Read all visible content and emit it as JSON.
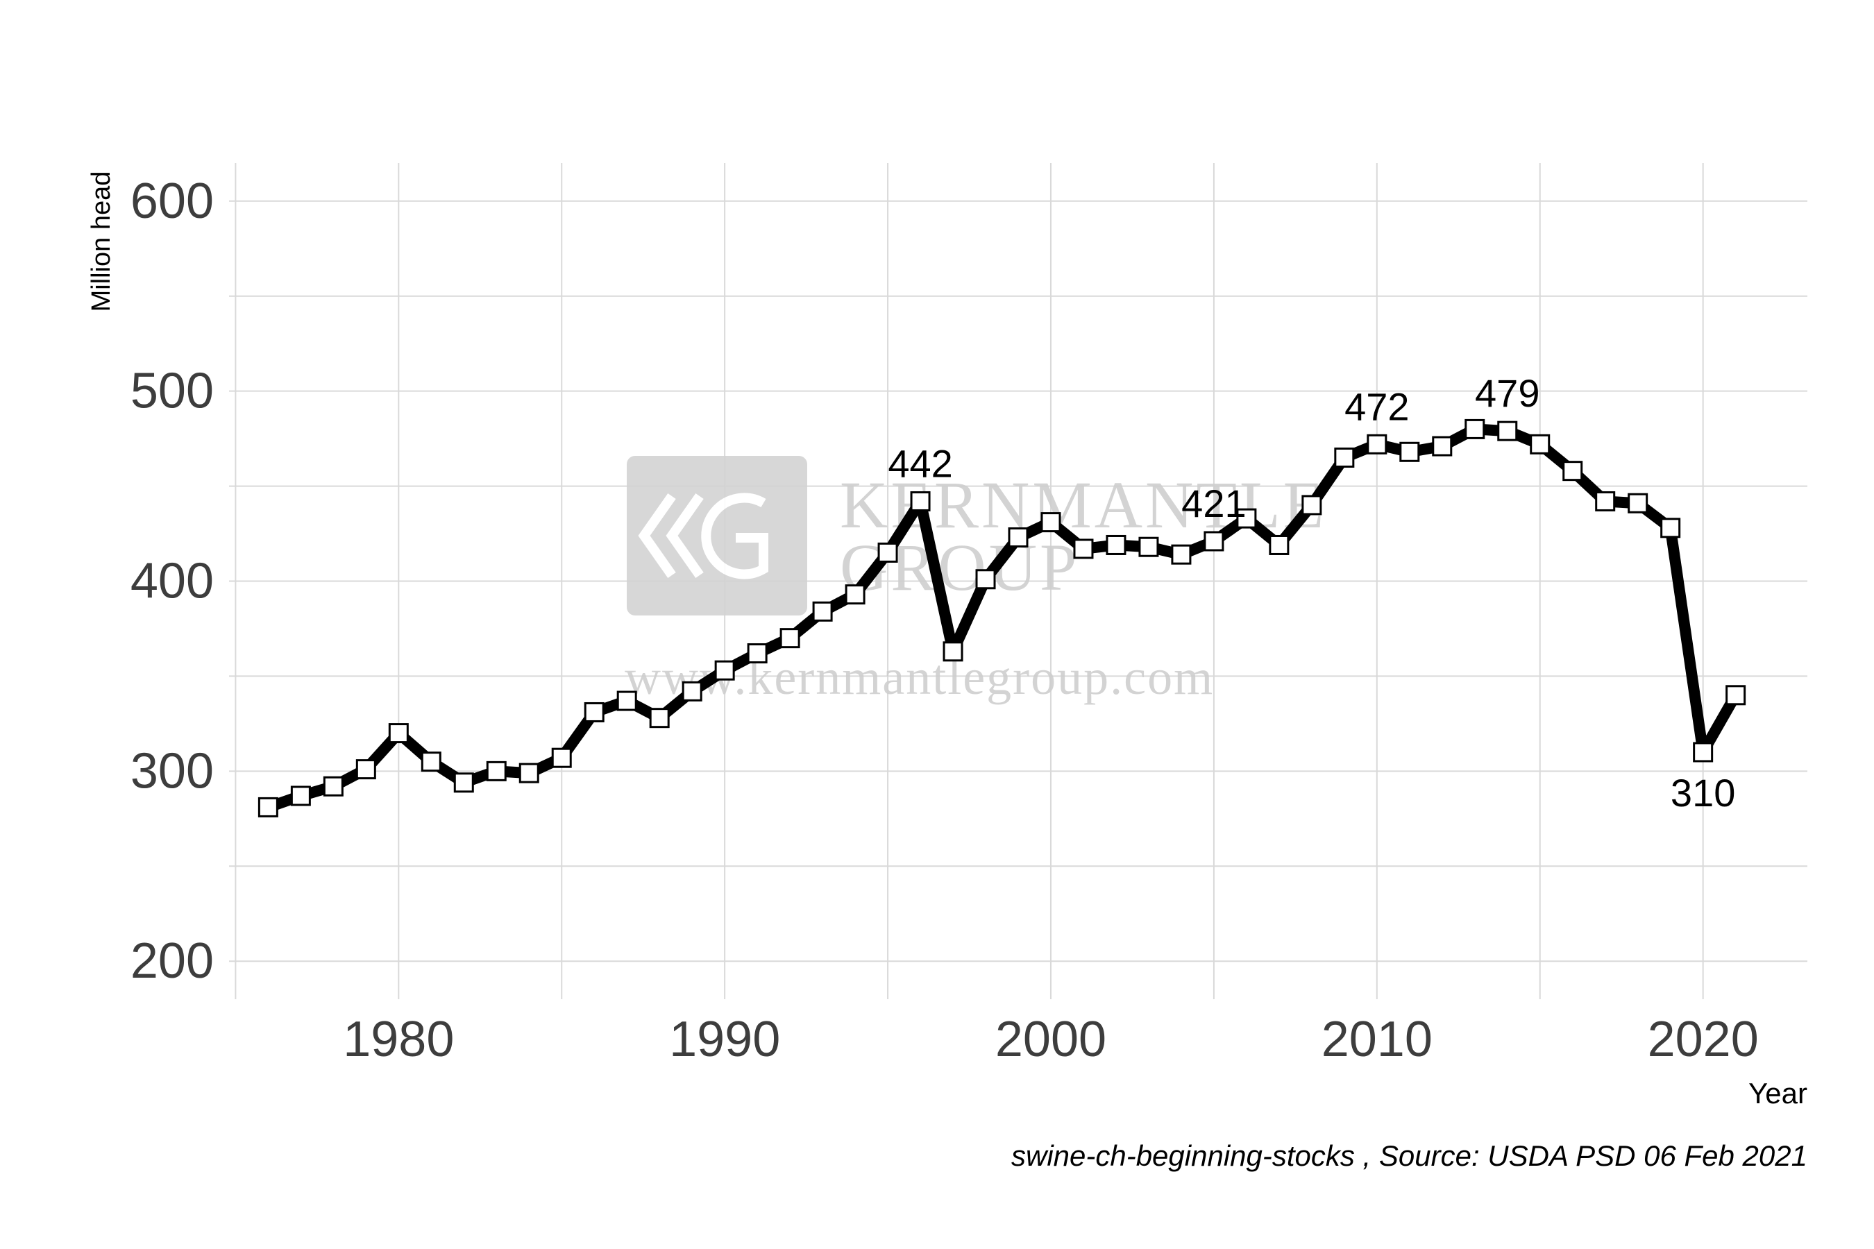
{
  "chart_data": {
    "type": "line",
    "ylabel": "Million head",
    "xlabel": "Year",
    "caption": "swine-ch-beginning-stocks , Source: USDA PSD  06 Feb 2021",
    "xlim": [
      1974.8,
      2023.2
    ],
    "ylim": [
      180,
      620
    ],
    "x_ticks": [
      1980,
      1990,
      2000,
      2010,
      2020
    ],
    "y_ticks": [
      200,
      300,
      400,
      500,
      600
    ],
    "grid": true,
    "legend": "none",
    "colors": {
      "line": "#000000",
      "marker_fill": "#ffffff",
      "grid": "#d9d9d9",
      "tick_text": "#3d3d3d"
    },
    "series": [
      {
        "x": [
          1976,
          1977,
          1978,
          1979,
          1980,
          1981,
          1982,
          1983,
          1984,
          1985,
          1986,
          1987,
          1988,
          1989,
          1990,
          1991,
          1992,
          1993,
          1994,
          1995,
          1996,
          1997,
          1998,
          1999,
          2000,
          2001,
          2002,
          2003,
          2004,
          2005,
          2006,
          2007,
          2008,
          2009,
          2010,
          2011,
          2012,
          2013,
          2014,
          2015,
          2016,
          2017,
          2018,
          2019,
          2020,
          2021
        ],
        "y": [
          281,
          287,
          292,
          301,
          320,
          305,
          294,
          300,
          299,
          307,
          331,
          337,
          328,
          342,
          353,
          362,
          370,
          384,
          393,
          415,
          442,
          363,
          401,
          423,
          431,
          417,
          419,
          418,
          414,
          421,
          433,
          419,
          440,
          465,
          472,
          468,
          471,
          480,
          479,
          472,
          458,
          442,
          441,
          428,
          310,
          340
        ]
      }
    ],
    "annotations": [
      {
        "x": 1996,
        "y": 442,
        "text": "442",
        "pos": "above"
      },
      {
        "x": 2005,
        "y": 421,
        "text": "421",
        "pos": "above"
      },
      {
        "x": 2010,
        "y": 472,
        "text": "472",
        "pos": "above"
      },
      {
        "x": 2014,
        "y": 479,
        "text": "479",
        "pos": "above"
      },
      {
        "x": 2020,
        "y": 310,
        "text": "310",
        "pos": "below"
      }
    ]
  },
  "watermark": {
    "name_line1": "KERNMANTLE",
    "name_line2": "GROUP",
    "url": "www.kernmantlegroup.com"
  }
}
